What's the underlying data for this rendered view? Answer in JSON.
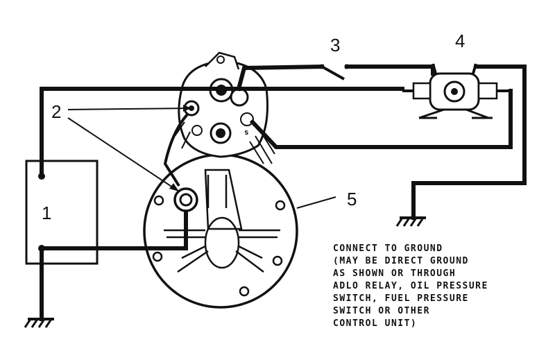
{
  "diagram": {
    "callouts": {
      "label_1": "1",
      "label_2": "2",
      "label_3": "3",
      "label_4": "4",
      "label_5": "5"
    },
    "note": {
      "lines": [
        "CONNECT TO GROUND",
        "(MAY BE DIRECT GROUND",
        "AS SHOWN OR THROUGH",
        "ADLO RELAY, OIL PRESSURE",
        "SWITCH, FUEL PRESSURE",
        "SWITCH OR OTHER",
        "CONTROL UNIT)"
      ]
    },
    "terminal_labels": {
      "s": "s"
    },
    "colors": {
      "ink": "#111111",
      "paper": "#ffffff"
    }
  }
}
